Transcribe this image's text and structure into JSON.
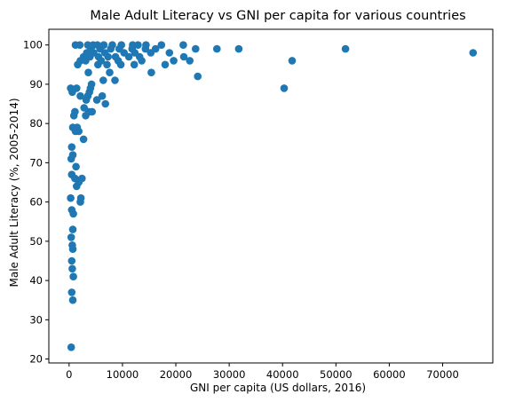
{
  "chart_data": {
    "type": "scatter",
    "title": "Male Adult Literacy vs GNI per capita for various countries",
    "xlabel": "GNI per capita (US dollars, 2016)",
    "ylabel": "Male Adult Literacy (%, 2005-2014)",
    "xlim": [
      -3800,
      79400
    ],
    "ylim": [
      19,
      104
    ],
    "xticks": [
      0,
      10000,
      20000,
      30000,
      40000,
      50000,
      60000,
      70000
    ],
    "yticks": [
      20,
      30,
      40,
      50,
      60,
      70,
      80,
      90,
      100
    ],
    "grid": false,
    "marker_color": "#1f77b4",
    "points": [
      {
        "x": 400,
        "y": 23
      },
      {
        "x": 700,
        "y": 35
      },
      {
        "x": 500,
        "y": 37
      },
      {
        "x": 800,
        "y": 41
      },
      {
        "x": 600,
        "y": 43
      },
      {
        "x": 500,
        "y": 45
      },
      {
        "x": 700,
        "y": 48
      },
      {
        "x": 600,
        "y": 49
      },
      {
        "x": 400,
        "y": 51
      },
      {
        "x": 700,
        "y": 53
      },
      {
        "x": 800,
        "y": 57
      },
      {
        "x": 500,
        "y": 58
      },
      {
        "x": 2100,
        "y": 60
      },
      {
        "x": 300,
        "y": 61
      },
      {
        "x": 2200,
        "y": 61
      },
      {
        "x": 1400,
        "y": 64
      },
      {
        "x": 1800,
        "y": 65
      },
      {
        "x": 2400,
        "y": 66
      },
      {
        "x": 500,
        "y": 67
      },
      {
        "x": 1100,
        "y": 66
      },
      {
        "x": 1300,
        "y": 69
      },
      {
        "x": 400,
        "y": 71
      },
      {
        "x": 700,
        "y": 72
      },
      {
        "x": 500,
        "y": 74
      },
      {
        "x": 2700,
        "y": 76
      },
      {
        "x": 1200,
        "y": 78
      },
      {
        "x": 1800,
        "y": 78
      },
      {
        "x": 700,
        "y": 79
      },
      {
        "x": 1500,
        "y": 79
      },
      {
        "x": 900,
        "y": 82
      },
      {
        "x": 1100,
        "y": 83
      },
      {
        "x": 3100,
        "y": 82
      },
      {
        "x": 3700,
        "y": 83
      },
      {
        "x": 4300,
        "y": 83
      },
      {
        "x": 2800,
        "y": 84
      },
      {
        "x": 6800,
        "y": 85
      },
      {
        "x": 3200,
        "y": 86
      },
      {
        "x": 5200,
        "y": 86
      },
      {
        "x": 2100,
        "y": 87
      },
      {
        "x": 3500,
        "y": 87
      },
      {
        "x": 6200,
        "y": 87
      },
      {
        "x": 600,
        "y": 88
      },
      {
        "x": 3800,
        "y": 88
      },
      {
        "x": 300,
        "y": 89
      },
      {
        "x": 1400,
        "y": 89
      },
      {
        "x": 4000,
        "y": 89
      },
      {
        "x": 4200,
        "y": 90
      },
      {
        "x": 40300,
        "y": 89
      },
      {
        "x": 6400,
        "y": 91
      },
      {
        "x": 8600,
        "y": 91
      },
      {
        "x": 24100,
        "y": 92
      },
      {
        "x": 3600,
        "y": 93
      },
      {
        "x": 7600,
        "y": 93
      },
      {
        "x": 15400,
        "y": 93
      },
      {
        "x": 1600,
        "y": 95
      },
      {
        "x": 5400,
        "y": 95
      },
      {
        "x": 7100,
        "y": 95
      },
      {
        "x": 9700,
        "y": 95
      },
      {
        "x": 12200,
        "y": 95
      },
      {
        "x": 18000,
        "y": 95
      },
      {
        "x": 2100,
        "y": 96
      },
      {
        "x": 3100,
        "y": 96
      },
      {
        "x": 6000,
        "y": 96
      },
      {
        "x": 9200,
        "y": 96
      },
      {
        "x": 13600,
        "y": 96
      },
      {
        "x": 19600,
        "y": 96
      },
      {
        "x": 22600,
        "y": 96
      },
      {
        "x": 41800,
        "y": 96
      },
      {
        "x": 2700,
        "y": 97
      },
      {
        "x": 3900,
        "y": 97
      },
      {
        "x": 5500,
        "y": 97
      },
      {
        "x": 7300,
        "y": 97
      },
      {
        "x": 8700,
        "y": 97
      },
      {
        "x": 11200,
        "y": 97
      },
      {
        "x": 13200,
        "y": 97
      },
      {
        "x": 21500,
        "y": 97
      },
      {
        "x": 3300,
        "y": 98
      },
      {
        "x": 4600,
        "y": 98
      },
      {
        "x": 6700,
        "y": 98
      },
      {
        "x": 10300,
        "y": 98
      },
      {
        "x": 12300,
        "y": 98
      },
      {
        "x": 15300,
        "y": 98
      },
      {
        "x": 18800,
        "y": 98
      },
      {
        "x": 75700,
        "y": 98
      },
      {
        "x": 4100,
        "y": 99
      },
      {
        "x": 5800,
        "y": 99
      },
      {
        "x": 7800,
        "y": 99
      },
      {
        "x": 9400,
        "y": 99
      },
      {
        "x": 11800,
        "y": 99
      },
      {
        "x": 14300,
        "y": 99
      },
      {
        "x": 16200,
        "y": 99
      },
      {
        "x": 23700,
        "y": 99
      },
      {
        "x": 27700,
        "y": 99
      },
      {
        "x": 31800,
        "y": 99
      },
      {
        "x": 51800,
        "y": 99
      },
      {
        "x": 1200,
        "y": 100
      },
      {
        "x": 2000,
        "y": 100
      },
      {
        "x": 3500,
        "y": 100
      },
      {
        "x": 4500,
        "y": 100
      },
      {
        "x": 5300,
        "y": 100
      },
      {
        "x": 6500,
        "y": 100
      },
      {
        "x": 8100,
        "y": 100
      },
      {
        "x": 9800,
        "y": 100
      },
      {
        "x": 11900,
        "y": 100
      },
      {
        "x": 12900,
        "y": 100
      },
      {
        "x": 14400,
        "y": 100
      },
      {
        "x": 17300,
        "y": 100
      },
      {
        "x": 21400,
        "y": 100
      }
    ]
  }
}
